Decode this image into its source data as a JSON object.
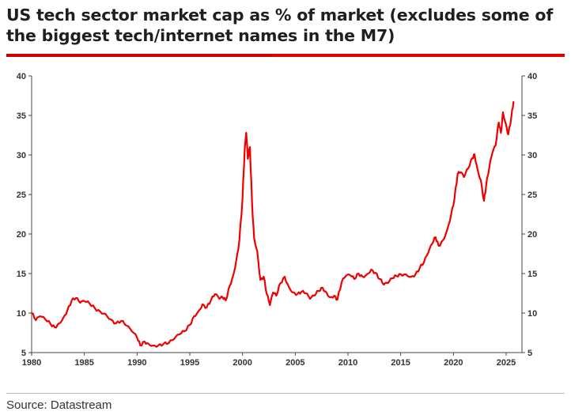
{
  "header": {
    "title": "US tech sector market cap as % of market (excludes some of the biggest tech/internet names in the M7)"
  },
  "footer": {
    "source": "Source: Datastream"
  },
  "colors": {
    "line": "#ee0000",
    "accent_rule": "#e10000",
    "axis": "#444444"
  },
  "chart_data": {
    "type": "line",
    "title": "US tech sector market cap as % of market (excludes some of the biggest tech/internet names in the M7)",
    "xlabel": "",
    "ylabel": "",
    "xlim": [
      1980,
      2026.5
    ],
    "ylim": [
      5,
      40
    ],
    "x_ticks": [
      "1980",
      "1985",
      "1990",
      "1995",
      "2000",
      "2005",
      "2010",
      "2015",
      "2020",
      "2025"
    ],
    "y_ticks": [
      "5",
      "10",
      "15",
      "20",
      "25",
      "30",
      "35",
      "40"
    ],
    "y_axis_both_sides": true,
    "grid": false,
    "legend": "none",
    "series": [
      {
        "points": [
          [
            1980.0,
            10.0
          ],
          [
            1980.4,
            9.1
          ],
          [
            1980.8,
            9.6
          ],
          [
            1981.3,
            9.2
          ],
          [
            1981.8,
            8.6
          ],
          [
            1982.2,
            8.2
          ],
          [
            1982.6,
            8.7
          ],
          [
            1983.0,
            9.4
          ],
          [
            1983.4,
            10.4
          ],
          [
            1983.8,
            11.6
          ],
          [
            1984.2,
            11.9
          ],
          [
            1984.6,
            11.3
          ],
          [
            1985.0,
            11.5
          ],
          [
            1985.5,
            11.2
          ],
          [
            1986.0,
            10.6
          ],
          [
            1986.5,
            10.2
          ],
          [
            1987.0,
            9.9
          ],
          [
            1987.5,
            9.2
          ],
          [
            1988.0,
            8.7
          ],
          [
            1988.5,
            9.0
          ],
          [
            1989.0,
            8.4
          ],
          [
            1989.5,
            7.7
          ],
          [
            1990.0,
            6.9
          ],
          [
            1990.3,
            5.9
          ],
          [
            1990.7,
            6.4
          ],
          [
            1991.1,
            6.1
          ],
          [
            1991.5,
            5.9
          ],
          [
            1992.0,
            5.9
          ],
          [
            1992.5,
            6.1
          ],
          [
            1993.0,
            6.2
          ],
          [
            1993.5,
            6.7
          ],
          [
            1994.0,
            7.3
          ],
          [
            1994.5,
            7.7
          ],
          [
            1995.0,
            8.5
          ],
          [
            1995.4,
            9.6
          ],
          [
            1995.8,
            10.2
          ],
          [
            1996.2,
            11.1
          ],
          [
            1996.6,
            10.7
          ],
          [
            1997.0,
            11.6
          ],
          [
            1997.4,
            12.4
          ],
          [
            1997.8,
            11.8
          ],
          [
            1998.1,
            12.0
          ],
          [
            1998.4,
            11.6
          ],
          [
            1998.8,
            13.5
          ],
          [
            1999.1,
            14.7
          ],
          [
            1999.4,
            16.6
          ],
          [
            1999.7,
            19.2
          ],
          [
            2000.0,
            24.5
          ],
          [
            2000.2,
            30.5
          ],
          [
            2000.35,
            32.8
          ],
          [
            2000.5,
            29.5
          ],
          [
            2000.7,
            31.0
          ],
          [
            2000.9,
            24.0
          ],
          [
            2001.1,
            19.5
          ],
          [
            2001.4,
            17.8
          ],
          [
            2001.7,
            14.2
          ],
          [
            2002.0,
            14.6
          ],
          [
            2002.3,
            12.4
          ],
          [
            2002.6,
            11.0
          ],
          [
            2002.9,
            12.6
          ],
          [
            2003.2,
            12.2
          ],
          [
            2003.6,
            13.8
          ],
          [
            2004.0,
            14.6
          ],
          [
            2004.4,
            13.3
          ],
          [
            2004.8,
            12.6
          ],
          [
            2005.2,
            12.4
          ],
          [
            2005.6,
            12.7
          ],
          [
            2006.0,
            12.5
          ],
          [
            2006.4,
            11.8
          ],
          [
            2006.8,
            12.2
          ],
          [
            2007.2,
            12.8
          ],
          [
            2007.6,
            13.2
          ],
          [
            2008.0,
            12.5
          ],
          [
            2008.3,
            12.0
          ],
          [
            2008.7,
            12.2
          ],
          [
            2009.0,
            11.7
          ],
          [
            2009.4,
            13.9
          ],
          [
            2009.8,
            14.7
          ],
          [
            2010.2,
            14.8
          ],
          [
            2010.6,
            14.3
          ],
          [
            2011.0,
            15.0
          ],
          [
            2011.4,
            14.6
          ],
          [
            2011.8,
            14.9
          ],
          [
            2012.2,
            15.5
          ],
          [
            2012.6,
            15.1
          ],
          [
            2013.0,
            14.3
          ],
          [
            2013.4,
            13.6
          ],
          [
            2013.8,
            13.8
          ],
          [
            2014.2,
            14.4
          ],
          [
            2014.6,
            14.7
          ],
          [
            2015.0,
            14.9
          ],
          [
            2015.5,
            14.9
          ],
          [
            2016.0,
            14.6
          ],
          [
            2016.4,
            14.9
          ],
          [
            2016.8,
            15.7
          ],
          [
            2017.2,
            16.4
          ],
          [
            2017.6,
            17.6
          ],
          [
            2018.0,
            18.8
          ],
          [
            2018.3,
            19.6
          ],
          [
            2018.6,
            18.5
          ],
          [
            2019.0,
            19.2
          ],
          [
            2019.4,
            20.5
          ],
          [
            2019.8,
            22.6
          ],
          [
            2020.1,
            24.5
          ],
          [
            2020.4,
            27.6
          ],
          [
            2020.7,
            27.8
          ],
          [
            2021.0,
            27.2
          ],
          [
            2021.4,
            28.3
          ],
          [
            2021.8,
            29.6
          ],
          [
            2022.0,
            30.1
          ],
          [
            2022.3,
            28.1
          ],
          [
            2022.6,
            26.8
          ],
          [
            2022.9,
            24.2
          ],
          [
            2023.1,
            26.1
          ],
          [
            2023.4,
            28.4
          ],
          [
            2023.7,
            30.3
          ],
          [
            2024.0,
            31.2
          ],
          [
            2024.3,
            34.1
          ],
          [
            2024.5,
            32.8
          ],
          [
            2024.7,
            35.4
          ],
          [
            2025.0,
            33.8
          ],
          [
            2025.2,
            32.6
          ],
          [
            2025.5,
            34.9
          ],
          [
            2025.7,
            36.7
          ]
        ]
      }
    ]
  }
}
